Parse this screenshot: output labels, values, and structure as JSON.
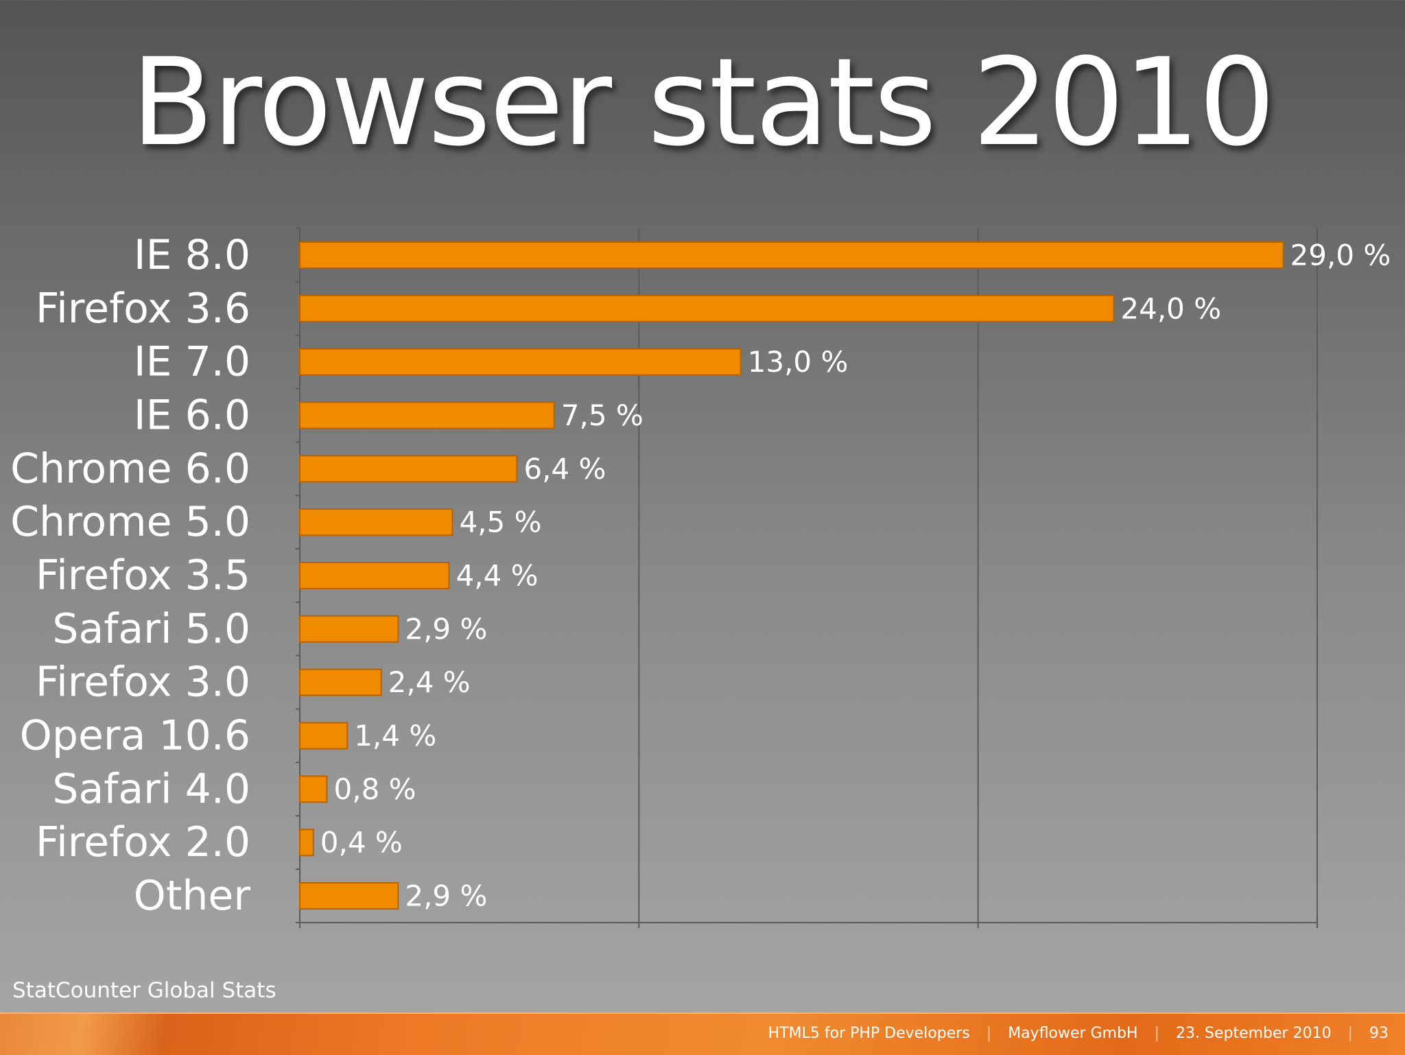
{
  "title": "Browser stats 2010",
  "source": "StatCounter Global Stats",
  "footer": {
    "talk": "HTML5 for PHP Developers",
    "company": "Mayflower GmbH",
    "date": "23. September 2010",
    "page": "93"
  },
  "colors": {
    "bar": "#f08a00",
    "bar_border": "#b86200",
    "grid": "#5a5a5a",
    "text": "#ffffff"
  },
  "chart_data": {
    "type": "bar",
    "orientation": "horizontal",
    "categories": [
      "IE 8.0",
      "Firefox 3.6",
      "IE 7.0",
      "IE 6.0",
      "Chrome 6.0",
      "Chrome 5.0",
      "Firefox 3.5",
      "Safari 5.0",
      "Firefox 3.0",
      "Opera 10.6",
      "Safari 4.0",
      "Firefox 2.0",
      "Other"
    ],
    "values": [
      29.0,
      24.0,
      13.0,
      7.5,
      6.4,
      4.5,
      4.4,
      2.9,
      2.4,
      1.4,
      0.8,
      0.4,
      2.9
    ],
    "data_labels": [
      "29,0 %",
      "24,0 %",
      "13,0 %",
      "7,5 %",
      "6,4 %",
      "4,5 %",
      "4,4 %",
      "2,9 %",
      "2,4 %",
      "1,4 %",
      "0,8 %",
      "0,4 %",
      "2,9 %"
    ],
    "xlim": [
      0,
      30
    ],
    "grid": true,
    "legend": "none"
  }
}
